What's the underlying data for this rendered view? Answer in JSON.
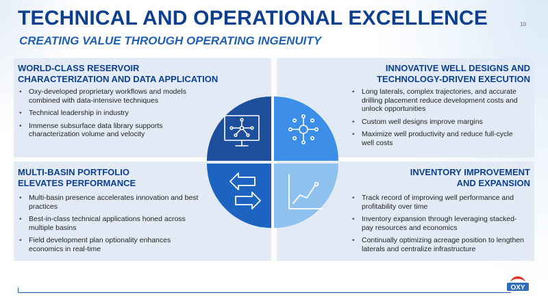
{
  "header": {
    "title": "TECHNICAL AND OPERATIONAL EXCELLENCE",
    "subtitle": "CREATING VALUE THROUGH OPERATING INGENUITY",
    "page_number": "10"
  },
  "quadrants": {
    "top_left": {
      "heading_line1": "WORLD-CLASS RESERVOIR",
      "heading_line2": "CHARACTERIZATION AND DATA APPLICATION",
      "bullets": [
        "Oxy-developed proprietary workflows and models combined with data-intensive techniques",
        "Technical leadership in industry",
        "Immense subsurface data library supports characterization volume and velocity"
      ]
    },
    "top_right": {
      "heading_line1": "INNOVATIVE WELL DESIGNS AND",
      "heading_line2": "TECHNOLOGY-DRIVEN EXECUTION",
      "bullets": [
        "Long laterals, complex trajectories, and accurate drilling placement reduce development costs and unlock opportunities",
        "Custom well designs improve margins",
        "Maximize well productivity and reduce full-cycle well costs"
      ]
    },
    "bottom_left": {
      "heading_line1": "MULTI-BASIN PORTFOLIO",
      "heading_line2": "ELEVATES PERFORMANCE",
      "bullets": [
        "Multi-basin presence accelerates innovation and best practices",
        "Best-in-class technical applications honed across multiple basins",
        "Field development plan optionality enhances economics in real-time"
      ]
    },
    "bottom_right": {
      "heading_line1": "INVENTORY IMPROVEMENT",
      "heading_line2": "AND EXPANSION",
      "bullets": [
        "Track record of improving well performance and profitability over time",
        "Inventory expansion through leveraging stacked-pay resources and economics",
        "Continually optimizing acreage position to lengthen laterals and centralize infrastructure"
      ]
    }
  },
  "circle": {
    "colors": {
      "top_left": "#1e4f9c",
      "top_right": "#3d8ee6",
      "bottom_left": "#1c63c2",
      "bottom_right": "#8fc1ef"
    },
    "icons": [
      "monitor-network-icon",
      "hub-network-icon",
      "exchange-arrows-icon",
      "line-chart-icon"
    ]
  },
  "logo": {
    "text": "OXY",
    "colors": {
      "red": "#e0312c",
      "blue": "#2e6bb8"
    }
  }
}
